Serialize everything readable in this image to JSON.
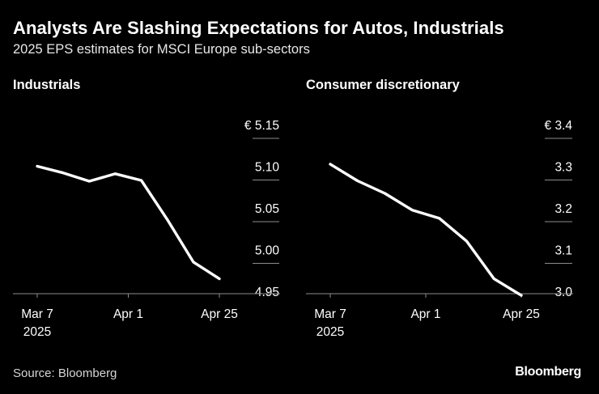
{
  "title": "Analysts Are Slashing Expectations for Autos, Industrials",
  "subtitle": "2025 EPS estimates for MSCI Europe sub-sectors",
  "source": "Source: Bloomberg",
  "brand": "Bloomberg",
  "colors": {
    "background": "#000000",
    "line": "#ffffff",
    "grid": "#8c8c8c",
    "text": "#ffffff"
  },
  "chart_data": [
    {
      "type": "line",
      "title": "Industrials",
      "currency": "€",
      "ylim": [
        4.95,
        5.15
      ],
      "y_ticks": [
        "5.15",
        "5.10",
        "5.05",
        "5.00",
        "4.95"
      ],
      "x_ticks": [
        {
          "label": "Mar 7",
          "sublabel": "2025",
          "index": 0
        },
        {
          "label": "Apr 1",
          "sublabel": "",
          "index": 3.5
        },
        {
          "label": "Apr 25",
          "sublabel": "",
          "index": 7
        }
      ],
      "series": [
        {
          "name": "Industrials",
          "values": [
            5.1,
            5.092,
            5.082,
            5.091,
            5.083,
            5.036,
            4.985,
            4.965
          ]
        }
      ]
    },
    {
      "type": "line",
      "title": "Consumer discretionary",
      "currency": "€",
      "ylim": [
        3.0,
        3.4
      ],
      "y_ticks": [
        "3.4",
        "3.3",
        "3.2",
        "3.1",
        "3.0"
      ],
      "x_ticks": [
        {
          "label": "Mar 7",
          "sublabel": "2025",
          "index": 0
        },
        {
          "label": "Apr 1",
          "sublabel": "",
          "index": 3.5
        },
        {
          "label": "Apr 25",
          "sublabel": "",
          "index": 7
        }
      ],
      "series": [
        {
          "name": "Consumer discretionary",
          "values": [
            3.305,
            3.265,
            3.235,
            3.195,
            3.175,
            3.12,
            3.03,
            2.99
          ]
        }
      ]
    }
  ]
}
